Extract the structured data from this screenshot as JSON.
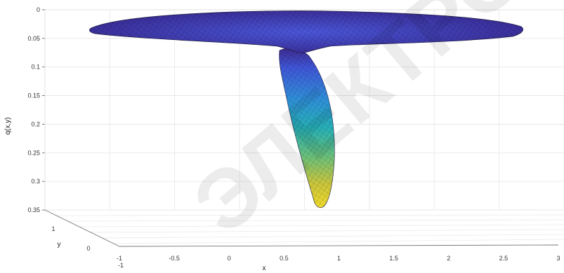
{
  "chart_data": {
    "type": "surface",
    "title": "",
    "zlabel": "q(x,y)",
    "xlabel": "x",
    "ylabel": "y",
    "z_axis": {
      "ticks": [
        0,
        0.05,
        0.1,
        0.15,
        0.2,
        0.25,
        0.3,
        0.35
      ],
      "tick_labels": [
        "0",
        "0.05",
        "0.1",
        "0.15",
        "0.2",
        "0.25",
        "0.3",
        "0.35"
      ],
      "reversed": true,
      "range": [
        0,
        0.35
      ]
    },
    "x_axis": {
      "ticks": [
        -1,
        -0.5,
        0,
        0.5,
        1,
        1.5,
        2,
        2.5,
        3
      ],
      "tick_labels": [
        "-1",
        "-0.5",
        "0",
        "0.5",
        "1",
        "1.5",
        "2",
        "2.5",
        "3"
      ],
      "range": [
        -1,
        3
      ]
    },
    "y_axis": {
      "ticks": [
        1,
        0,
        -1
      ],
      "tick_labels": [
        "1",
        "0",
        "-1"
      ],
      "range": [
        -1,
        1
      ]
    },
    "grid": true,
    "colormap": [
      "#3d2a8f",
      "#3f55d6",
      "#2f8fd8",
      "#27b0b6",
      "#6bc07a",
      "#c9c43c",
      "#f0dc2c"
    ],
    "surface": {
      "disc": {
        "center_x": 0.55,
        "z_rim": 0.025,
        "z_center": 0.045,
        "x_extent": [
          -1,
          3
        ]
      },
      "plume": {
        "top_x": 0.65,
        "top_z": 0.045,
        "bottom_x": 0.85,
        "bottom_z": 0.345
      }
    },
    "watermark": "ЭЛЕКТРОННЫЙ АРХИВ ТЕОРИИ"
  }
}
